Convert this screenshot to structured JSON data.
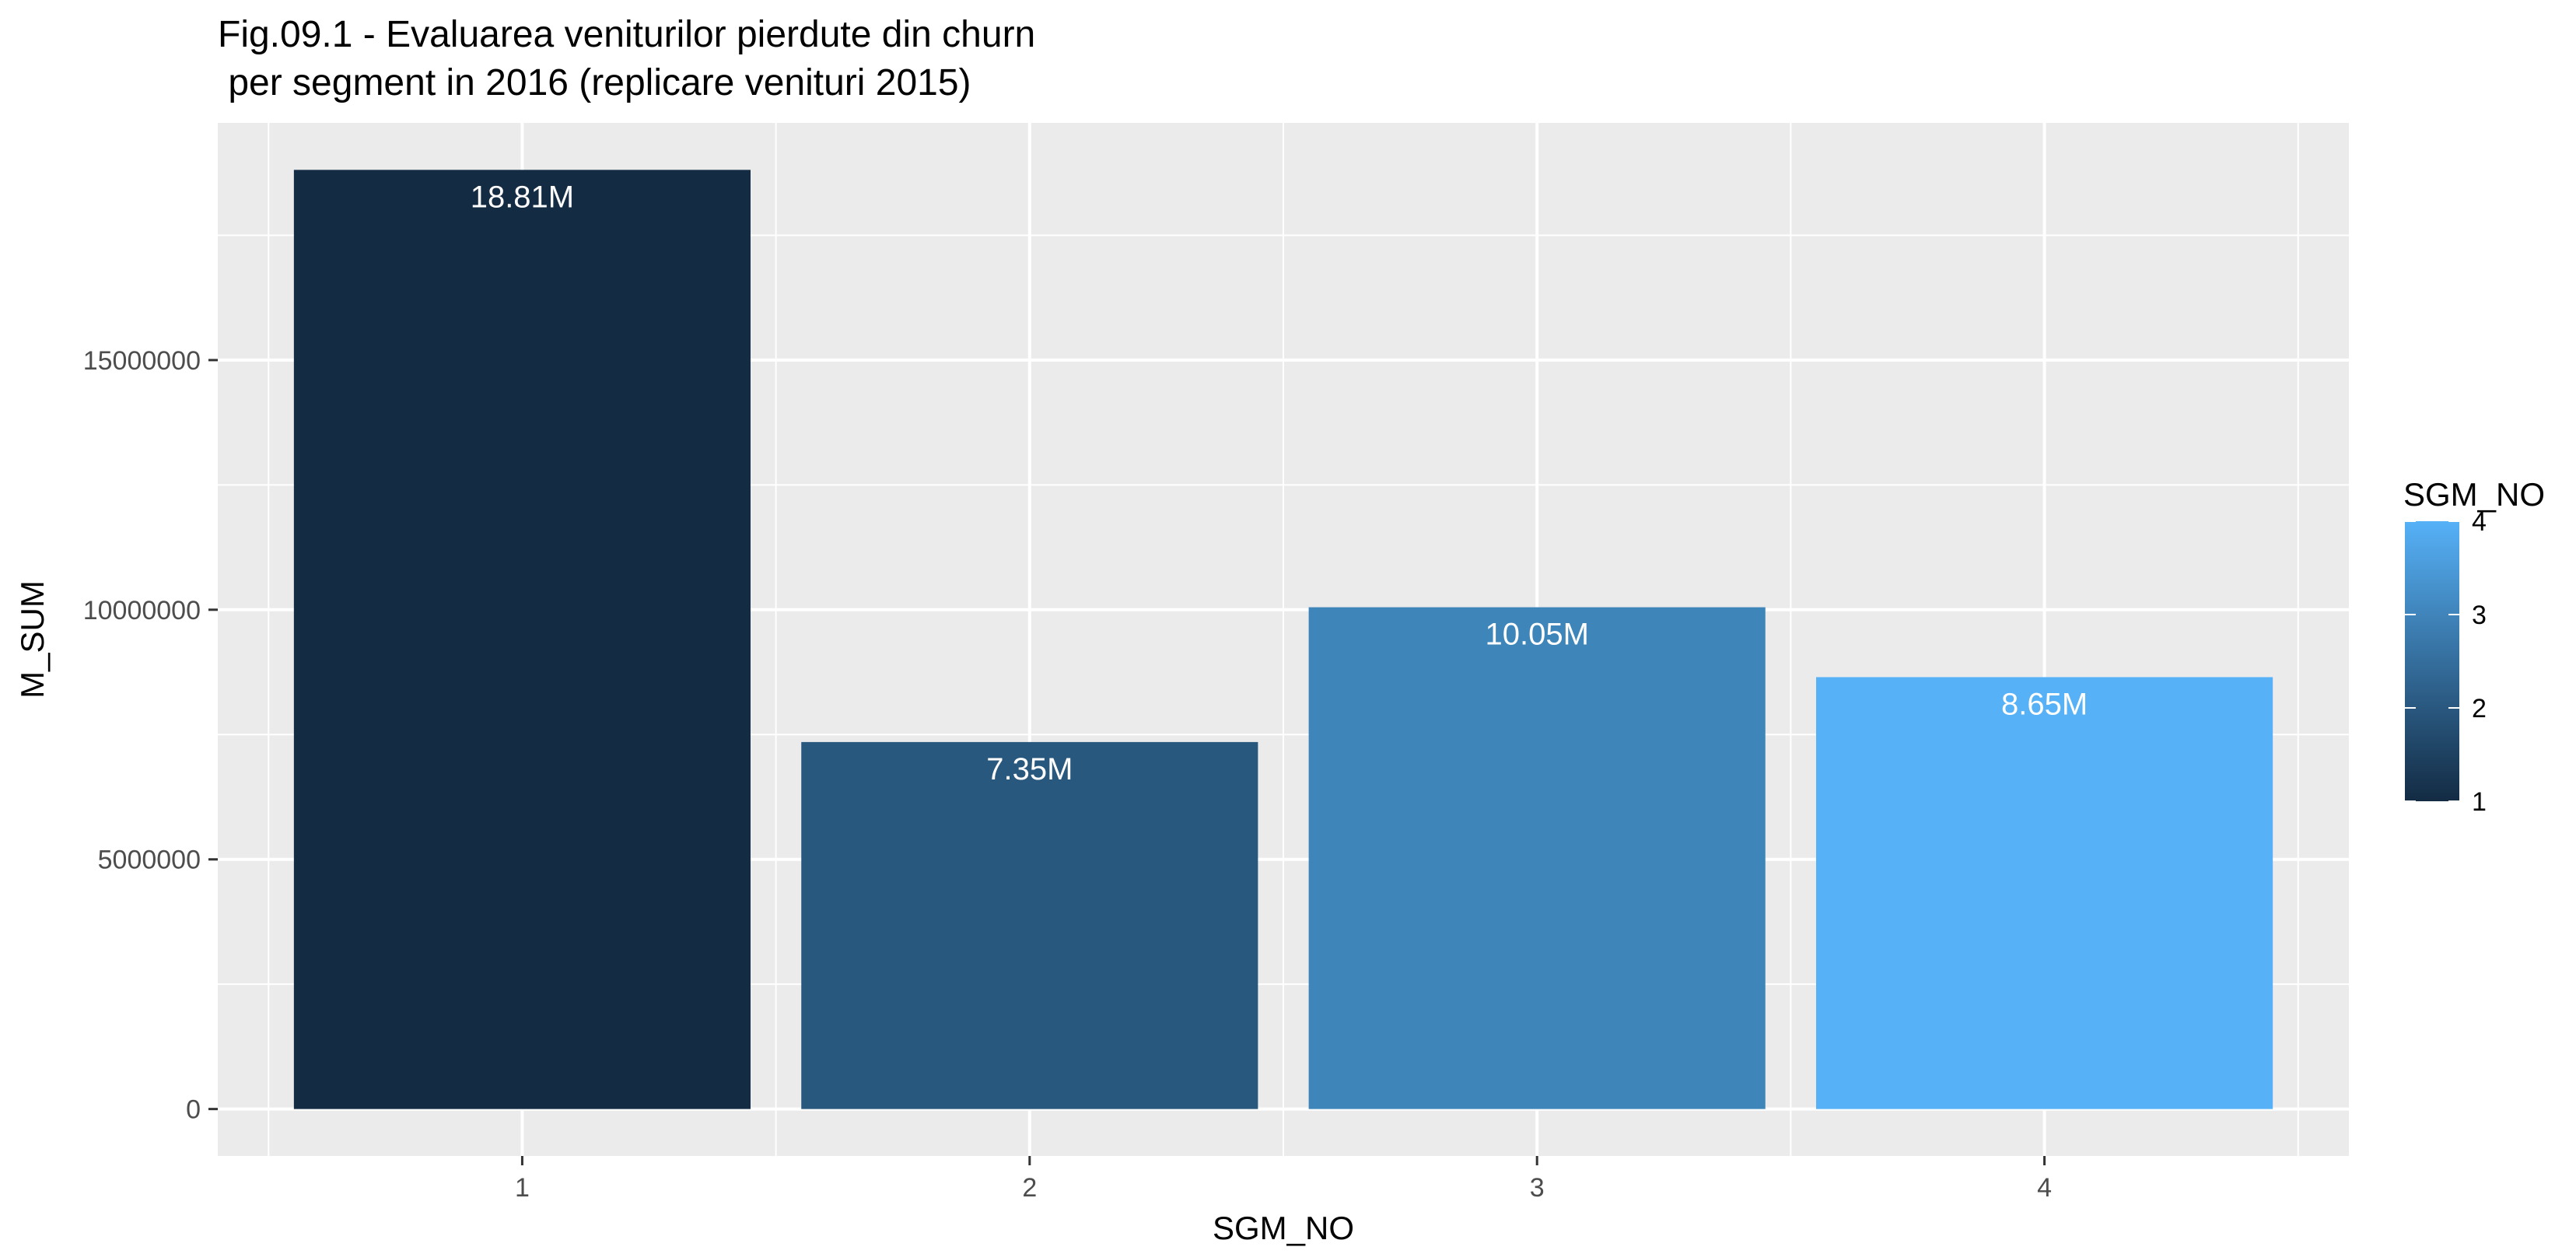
{
  "chart_data": {
    "type": "bar",
    "title_lines": [
      "Fig.09.1 - Evaluarea veniturilor pierdute din churn",
      " per segment in 2016 (replicare venituri 2015)"
    ],
    "xlabel": "SGM_NO",
    "ylabel": "M_SUM",
    "categories": [
      "1",
      "2",
      "3",
      "4"
    ],
    "values": [
      18810000,
      7350000,
      10050000,
      8650000
    ],
    "data_labels": [
      "18.81M",
      "7.35M",
      "10.05M",
      "8.65M"
    ],
    "bar_colors": [
      "#132B43",
      "#29587E",
      "#3E86BA",
      "#56B1F7"
    ],
    "y_ticks": [
      0,
      5000000,
      10000000,
      15000000
    ],
    "y_tick_labels": [
      "0",
      "5000000",
      "10000000",
      "15000000"
    ],
    "ylim": [
      -940500,
      19750500
    ],
    "grid": true,
    "panel_background": "#EBEBEB",
    "grid_color": "#FFFFFF",
    "legend": {
      "title": "SGM_NO",
      "placement": "right",
      "gradient": [
        "#132B43",
        "#56B1F7"
      ],
      "range": [
        1,
        4
      ],
      "ticks": [
        1,
        2,
        3,
        4
      ],
      "tick_labels": [
        "1",
        "2",
        "3",
        "4"
      ]
    }
  }
}
